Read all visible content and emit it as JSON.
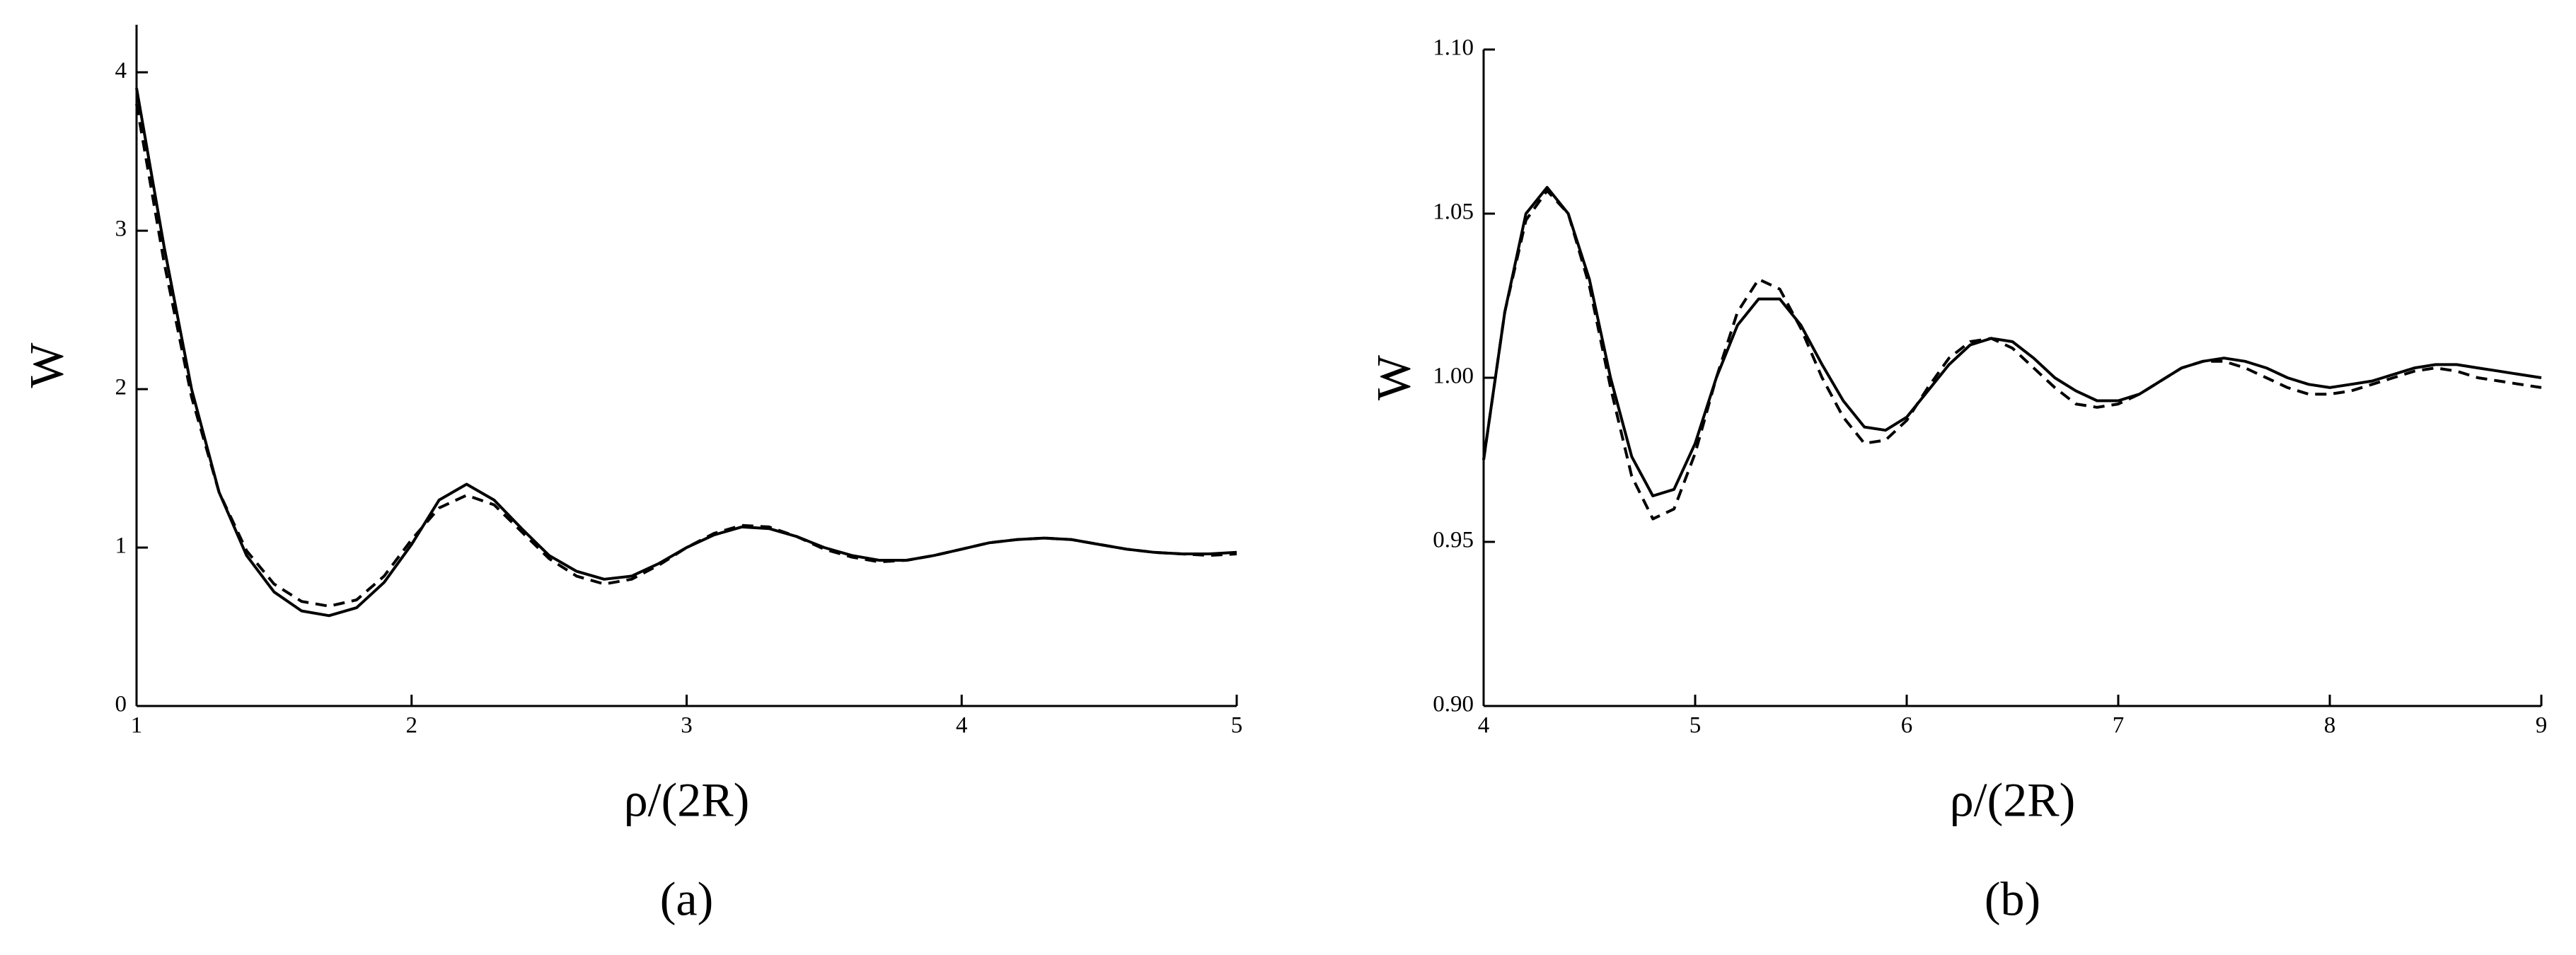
{
  "chart_data": [
    {
      "type": "line",
      "caption": "(a)",
      "xlabel": "ρ/(2R)",
      "ylabel": "W",
      "xlim": [
        1,
        5
      ],
      "ylim": [
        0,
        4.3
      ],
      "xticks": [
        1,
        2,
        3,
        4,
        5
      ],
      "yticks": [
        0,
        1,
        2,
        3,
        4
      ],
      "x": [
        1,
        1.1,
        1.2,
        1.3,
        1.4,
        1.5,
        1.6,
        1.7,
        1.8,
        1.9,
        2,
        2.1,
        2.2,
        2.3,
        2.4,
        2.5,
        2.6,
        2.7,
        2.8,
        2.9,
        3,
        3.1,
        3.2,
        3.3,
        3.4,
        3.5,
        3.6,
        3.7,
        3.8,
        3.9,
        4,
        4.1,
        4.2,
        4.3,
        4.4,
        4.5,
        4.6,
        4.7,
        4.8,
        4.9,
        5
      ],
      "series": [
        {
          "color": "#000000",
          "dashed": false,
          "values": [
            3.9,
            2.9,
            2.0,
            1.35,
            0.95,
            0.72,
            0.6,
            0.57,
            0.62,
            0.78,
            1.02,
            1.3,
            1.4,
            1.3,
            1.12,
            0.95,
            0.85,
            0.8,
            0.82,
            0.9,
            1.0,
            1.08,
            1.13,
            1.12,
            1.07,
            1.0,
            0.95,
            0.92,
            0.92,
            0.95,
            0.99,
            1.03,
            1.05,
            1.06,
            1.05,
            1.02,
            0.99,
            0.97,
            0.96,
            0.96,
            0.97
          ]
        },
        {
          "color": "#000000",
          "dashed": true,
          "values": [
            3.8,
            2.8,
            1.95,
            1.35,
            0.98,
            0.77,
            0.66,
            0.63,
            0.67,
            0.82,
            1.05,
            1.25,
            1.33,
            1.27,
            1.1,
            0.93,
            0.82,
            0.77,
            0.8,
            0.89,
            1.0,
            1.09,
            1.14,
            1.13,
            1.07,
            0.99,
            0.94,
            0.91,
            0.92,
            0.95,
            0.99,
            1.03,
            1.05,
            1.06,
            1.05,
            1.02,
            0.99,
            0.97,
            0.96,
            0.95,
            0.96
          ]
        }
      ]
    },
    {
      "type": "line",
      "caption": "(b)",
      "xlabel": "ρ/(2R)",
      "ylabel": "W",
      "xlim": [
        4,
        9
      ],
      "ylim": [
        0.9,
        1.1
      ],
      "xticks": [
        4,
        5,
        6,
        7,
        8,
        9
      ],
      "yticks": [
        {
          "value": 0.9,
          "label": "0.90"
        },
        0.95,
        {
          "value": 1,
          "label": "1.00"
        },
        1.05,
        {
          "value": 1.1,
          "label": "1.10"
        }
      ],
      "x": [
        4,
        4.1,
        4.2,
        4.3,
        4.4,
        4.5,
        4.6,
        4.7,
        4.8,
        4.9,
        5,
        5.1,
        5.2,
        5.3,
        5.4,
        5.5,
        5.6,
        5.7,
        5.8,
        5.9,
        6,
        6.1,
        6.2,
        6.3,
        6.4,
        6.5,
        6.6,
        6.7,
        6.8,
        6.9,
        7,
        7.1,
        7.2,
        7.3,
        7.4,
        7.5,
        7.6,
        7.7,
        7.8,
        7.9,
        8,
        8.1,
        8.2,
        8.3,
        8.4,
        8.5,
        8.6,
        8.7,
        8.8,
        8.9,
        9
      ],
      "series": [
        {
          "color": "#000000",
          "dashed": false,
          "values": [
            0.975,
            1.02,
            1.05,
            1.058,
            1.05,
            1.03,
            1.0,
            0.976,
            0.964,
            0.966,
            0.98,
            1.0,
            1.016,
            1.024,
            1.024,
            1.016,
            1.004,
            0.993,
            0.985,
            0.984,
            0.988,
            0.996,
            1.004,
            1.01,
            1.012,
            1.011,
            1.006,
            1.0,
            0.996,
            0.993,
            0.993,
            0.995,
            0.999,
            1.003,
            1.005,
            1.006,
            1.005,
            1.003,
            1.0,
            0.998,
            0.997,
            0.998,
            0.999,
            1.001,
            1.003,
            1.004,
            1.004,
            1.003,
            1.002,
            1.001,
            1.0
          ]
        },
        {
          "color": "#000000",
          "dashed": true,
          "values": [
            0.975,
            1.02,
            1.048,
            1.057,
            1.05,
            1.028,
            0.997,
            0.97,
            0.957,
            0.96,
            0.977,
            1.0,
            1.02,
            1.03,
            1.027,
            1.015,
            1.0,
            0.988,
            0.98,
            0.981,
            0.987,
            0.997,
            1.006,
            1.011,
            1.012,
            1.009,
            1.003,
            0.997,
            0.992,
            0.991,
            0.992,
            0.995,
            0.999,
            1.003,
            1.005,
            1.005,
            1.003,
            1.0,
            0.997,
            0.995,
            0.995,
            0.996,
            0.998,
            1.0,
            1.002,
            1.003,
            1.002,
            1.0,
            0.999,
            0.998,
            0.997
          ]
        }
      ]
    }
  ]
}
